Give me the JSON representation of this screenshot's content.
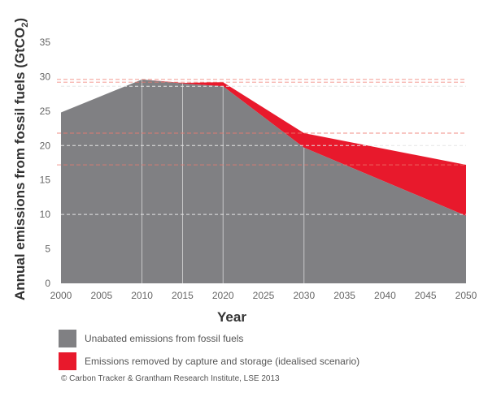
{
  "chart_data": {
    "type": "area",
    "ylabel": "Annual emissions from fossil fuels (GtCO",
    "ylabel_sub": "2",
    "ylabel_end": ")",
    "xlabel": "Year",
    "x": [
      2000,
      2010,
      2020,
      2030,
      2050
    ],
    "xticks": [
      "2000",
      "2005",
      "2010",
      "2015",
      "2020",
      "2025",
      "2030",
      "2035",
      "2040",
      "2045",
      "2050"
    ],
    "xlim": [
      2000,
      2050
    ],
    "yticks": [
      "0",
      "5",
      "10",
      "15",
      "20",
      "25",
      "30",
      "35"
    ],
    "ylim": [
      0,
      35
    ],
    "series": [
      {
        "name": "Unabated emissions from fossil fuels",
        "color": "#808083",
        "x": [
          2000,
          2010,
          2015,
          2020,
          2030,
          2050
        ],
        "values": [
          24.8,
          29.6,
          29.0,
          28.6,
          19.7,
          9.8
        ]
      },
      {
        "name": "Emissions removed by capture and storage (idealised scenario)",
        "color": "#e8192c",
        "x": [
          2000,
          2010,
          2015,
          2020,
          2030,
          2050
        ],
        "values": [
          0,
          0,
          0.1,
          0.6,
          2.1,
          7.4
        ]
      }
    ],
    "total_top": [
      24.8,
      29.6,
      29.1,
      29.2,
      21.8,
      17.2
    ],
    "reference_lines": {
      "gray_dashed": [
        20,
        10,
        28.6
      ],
      "red_dashed": [
        29.6,
        29.2,
        21.8,
        17.2
      ]
    }
  },
  "legend": [
    {
      "label": "Unabated emissions from fossil fuels",
      "color": "#808083"
    },
    {
      "label": "Emissions removed by capture and storage (idealised scenario)",
      "color": "#e8192c"
    }
  ],
  "credit": "© Carbon Tracker & Grantham Research Institute, LSE 2013"
}
